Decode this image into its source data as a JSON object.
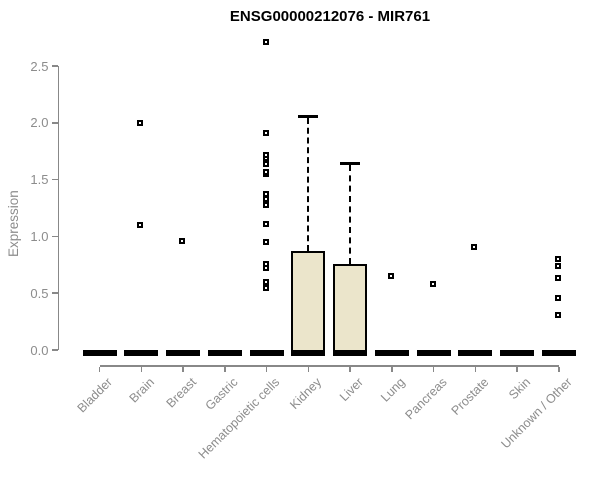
{
  "chart_data": {
    "type": "boxplot",
    "title": "ENSG00000212076 - MIR761",
    "ylabel": "Expression",
    "xlabel": "",
    "ylim": [
      0.0,
      2.5
    ],
    "yticks": [
      0.0,
      0.5,
      1.0,
      1.5,
      2.0,
      2.5
    ],
    "ytick_labels": [
      "0.0",
      "0.5",
      "1.0",
      "1.5",
      "2.0",
      "2.5"
    ],
    "grid": false,
    "legend": null,
    "categories": [
      "Bladder",
      "Brain",
      "Breast",
      "Gastric",
      "Hematopoietic cells",
      "Kidney",
      "Liver",
      "Lung",
      "Pancreas",
      "Prostate",
      "Skin",
      "Unknown / Other"
    ],
    "series": [
      {
        "label": "Bladder",
        "q1": 0,
        "median": 0,
        "q3": 0,
        "whisker_low": 0,
        "whisker_high": 0,
        "outliers": []
      },
      {
        "label": "Brain",
        "q1": 0,
        "median": 0,
        "q3": 0,
        "whisker_low": 0,
        "whisker_high": 0,
        "outliers": [
          1.1,
          2.0
        ]
      },
      {
        "label": "Breast",
        "q1": 0,
        "median": 0,
        "q3": 0,
        "whisker_low": 0,
        "whisker_high": 0,
        "outliers": [
          0.96
        ]
      },
      {
        "label": "Gastric",
        "q1": 0,
        "median": 0,
        "q3": 0,
        "whisker_low": 0,
        "whisker_high": 0,
        "outliers": []
      },
      {
        "label": "Hematopoietic cells",
        "q1": 0,
        "median": 0,
        "q3": 0,
        "whisker_low": 0,
        "whisker_high": 0,
        "outliers": [
          0.55,
          0.6,
          0.72,
          0.76,
          0.95,
          1.11,
          1.28,
          1.33,
          1.37,
          1.55,
          1.57,
          1.64,
          1.69,
          1.72,
          1.91,
          2.71
        ]
      },
      {
        "label": "Kidney",
        "q1": 0,
        "median": 0,
        "q3": 0.87,
        "whisker_low": 0,
        "whisker_high": 2.06,
        "outliers": []
      },
      {
        "label": "Liver",
        "q1": 0,
        "median": 0,
        "q3": 0.76,
        "whisker_low": 0,
        "whisker_high": 1.65,
        "outliers": []
      },
      {
        "label": "Lung",
        "q1": 0,
        "median": 0,
        "q3": 0,
        "whisker_low": 0,
        "whisker_high": 0,
        "outliers": [
          0.65
        ]
      },
      {
        "label": "Pancreas",
        "q1": 0,
        "median": 0,
        "q3": 0,
        "whisker_low": 0,
        "whisker_high": 0,
        "outliers": [
          0.58
        ]
      },
      {
        "label": "Prostate",
        "q1": 0,
        "median": 0,
        "q3": 0,
        "whisker_low": 0,
        "whisker_high": 0,
        "outliers": [
          0.91
        ]
      },
      {
        "label": "Skin",
        "q1": 0,
        "median": 0,
        "q3": 0,
        "whisker_low": 0,
        "whisker_high": 0,
        "outliers": []
      },
      {
        "label": "Unknown / Other",
        "q1": 0,
        "median": 0,
        "q3": 0,
        "whisker_low": 0,
        "whisker_high": 0,
        "outliers": [
          0.31,
          0.46,
          0.63,
          0.74,
          0.8
        ]
      }
    ],
    "colors": {
      "box_fill": "#EBE5CB",
      "box_border": "#000000",
      "median": "#000000",
      "outlier_border": "#000000",
      "axis": "#888888",
      "tick_label": "#8c8c8c",
      "title": "#000000",
      "background": "#ffffff"
    }
  }
}
